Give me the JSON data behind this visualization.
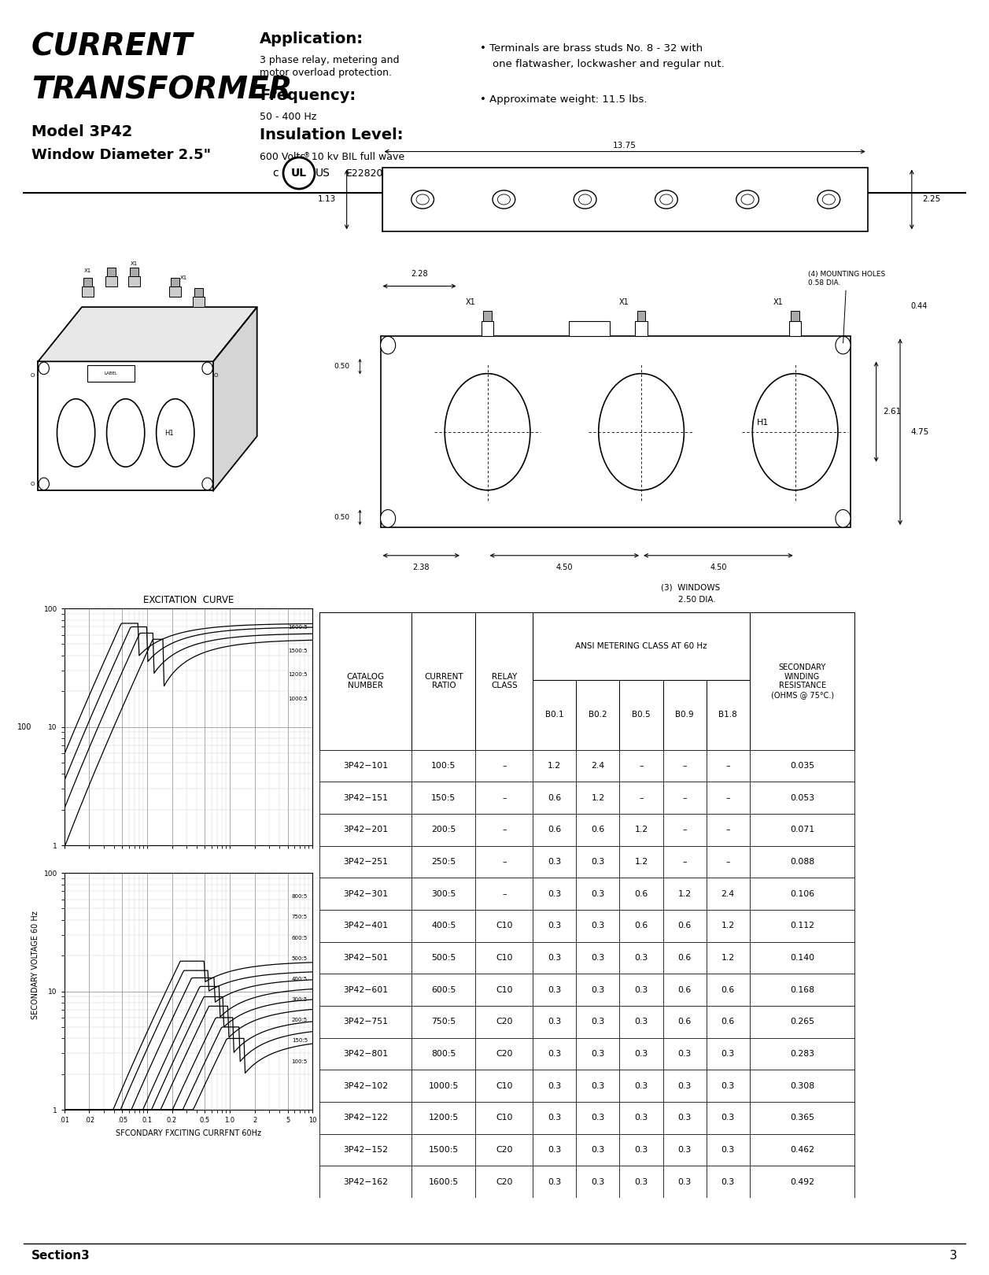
{
  "title_line1": "CURRENT",
  "title_line2": "TRANSFORMER",
  "model": "Model 3P42",
  "window": "Window Diameter 2.5\"",
  "app_title": "Application:",
  "app_text": "3 phase relay, metering and\nmotor overload protection.",
  "freq_title": "Frequency:",
  "freq_text": "50 - 400 Hz",
  "ins_title": "Insulation Level:",
  "ins_text": "600 Volts, 10 kv BIL full wave",
  "bullet1": "Terminals are brass studs No. 8 - 32 with\none flatwasher, lockwasher and regular nut.",
  "bullet2": "Approximate weight: 11.5 lbs.",
  "ul_text": "E228202",
  "section_text": "Section3",
  "page_num": "3",
  "excitation_title": "EXCITATION  CURVE",
  "exc_xlabel": "SFCONDARY FXCITING CURRFNT 60Hz",
  "exc_ylabel": "SECONDARY VOLTAGE 60 Hz",
  "ansi_header": "ANSI METERING CLASS AT 60 Hz",
  "table_data": [
    [
      "3P42−101",
      "100:5",
      "–",
      "1.2",
      "2.4",
      "–",
      "–",
      "–",
      "0.035"
    ],
    [
      "3P42−151",
      "150:5",
      "–",
      "0.6",
      "1.2",
      "–",
      "–",
      "–",
      "0.053"
    ],
    [
      "3P42−201",
      "200:5",
      "–",
      "0.6",
      "0.6",
      "1.2",
      "–",
      "–",
      "0.071"
    ],
    [
      "3P42−251",
      "250:5",
      "–",
      "0.3",
      "0.3",
      "1.2",
      "–",
      "–",
      "0.088"
    ],
    [
      "3P42−301",
      "300:5",
      "–",
      "0.3",
      "0.3",
      "0.6",
      "1.2",
      "2.4",
      "0.106"
    ],
    [
      "3P42−401",
      "400:5",
      "C10",
      "0.3",
      "0.3",
      "0.6",
      "0.6",
      "1.2",
      "0.112"
    ],
    [
      "3P42−501",
      "500:5",
      "C10",
      "0.3",
      "0.3",
      "0.3",
      "0.6",
      "1.2",
      "0.140"
    ],
    [
      "3P42−601",
      "600:5",
      "C10",
      "0.3",
      "0.3",
      "0.3",
      "0.6",
      "0.6",
      "0.168"
    ],
    [
      "3P42−751",
      "750:5",
      "C20",
      "0.3",
      "0.3",
      "0.3",
      "0.6",
      "0.6",
      "0.265"
    ],
    [
      "3P42−801",
      "800:5",
      "C20",
      "0.3",
      "0.3",
      "0.3",
      "0.3",
      "0.3",
      "0.283"
    ],
    [
      "3P42−102",
      "1000:5",
      "C10",
      "0.3",
      "0.3",
      "0.3",
      "0.3",
      "0.3",
      "0.308"
    ],
    [
      "3P42−122",
      "1200:5",
      "C10",
      "0.3",
      "0.3",
      "0.3",
      "0.3",
      "0.3",
      "0.365"
    ],
    [
      "3P42−152",
      "1500:5",
      "C20",
      "0.3",
      "0.3",
      "0.3",
      "0.3",
      "0.3",
      "0.462"
    ],
    [
      "3P42−162",
      "1600:5",
      "C20",
      "0.3",
      "0.3",
      "0.3",
      "0.3",
      "0.3",
      "0.492"
    ]
  ],
  "bg_color": "#ffffff",
  "text_color": "#000000"
}
